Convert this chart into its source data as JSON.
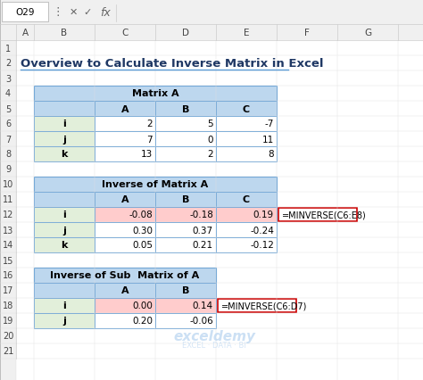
{
  "title": "Overview to Calculate Inverse Matrix in Excel",
  "title_color": "#1F3864",
  "bg_color": "#FFFFFF",
  "excel_toolbar": {
    "cell_ref": "O29",
    "fx_text": "fx"
  },
  "col_headers": [
    "A",
    "B",
    "C",
    "D",
    "E",
    "F",
    "G"
  ],
  "row_headers": [
    "1",
    "2",
    "3",
    "4",
    "5",
    "6",
    "7",
    "8",
    "9",
    "10",
    "11",
    "12",
    "13",
    "14",
    "15",
    "16",
    "17",
    "18",
    "19",
    "20",
    "21"
  ],
  "table1": {
    "title": "Matrix A",
    "title_bg": "#BDD7EE",
    "header_bg": "#BDD7EE",
    "row_label_bg": "#E2EFDA",
    "data_bg": "#FFFFFF",
    "headers": [
      "",
      "A",
      "B",
      "C"
    ],
    "rows": [
      [
        "i",
        "2",
        "5",
        "-7"
      ],
      [
        "j",
        "7",
        "0",
        "11"
      ],
      [
        "k",
        "13",
        "2",
        "8"
      ]
    ]
  },
  "table2": {
    "title": "Inverse of Matrix A",
    "title_bg": "#BDD7EE",
    "header_bg": "#BDD7EE",
    "row_label_bg": "#E2EFDA",
    "data_bg": "#FFFFFF",
    "highlight_bg": "#FFCCCC",
    "headers": [
      "",
      "A",
      "B",
      "C"
    ],
    "rows": [
      [
        "i",
        "-0.08",
        "-0.18",
        "0.19"
      ],
      [
        "j",
        "0.30",
        "0.37",
        "-0.24"
      ],
      [
        "k",
        "0.05",
        "0.21",
        "-0.12"
      ]
    ],
    "formula": "=MINVERSE(C6:E8)",
    "formula_row": 0
  },
  "table3": {
    "title": "Inverse of Sub  Matrix of A",
    "title_bg": "#BDD7EE",
    "header_bg": "#BDD7EE",
    "row_label_bg": "#E2EFDA",
    "data_bg": "#FFFFFF",
    "highlight_bg": "#FFCCCC",
    "headers": [
      "",
      "A",
      "B"
    ],
    "rows": [
      [
        "i",
        "0.00",
        "0.14"
      ],
      [
        "j",
        "0.20",
        "-0.06"
      ]
    ],
    "formula": "=MINVERSE(C6:D7)",
    "formula_row": 0
  },
  "watermark": "exceldemy\nEXCEL · DATA · BI",
  "grid_color": "#D3D3D3",
  "border_color": "#808080",
  "table_border_color": "#5B9BD5"
}
